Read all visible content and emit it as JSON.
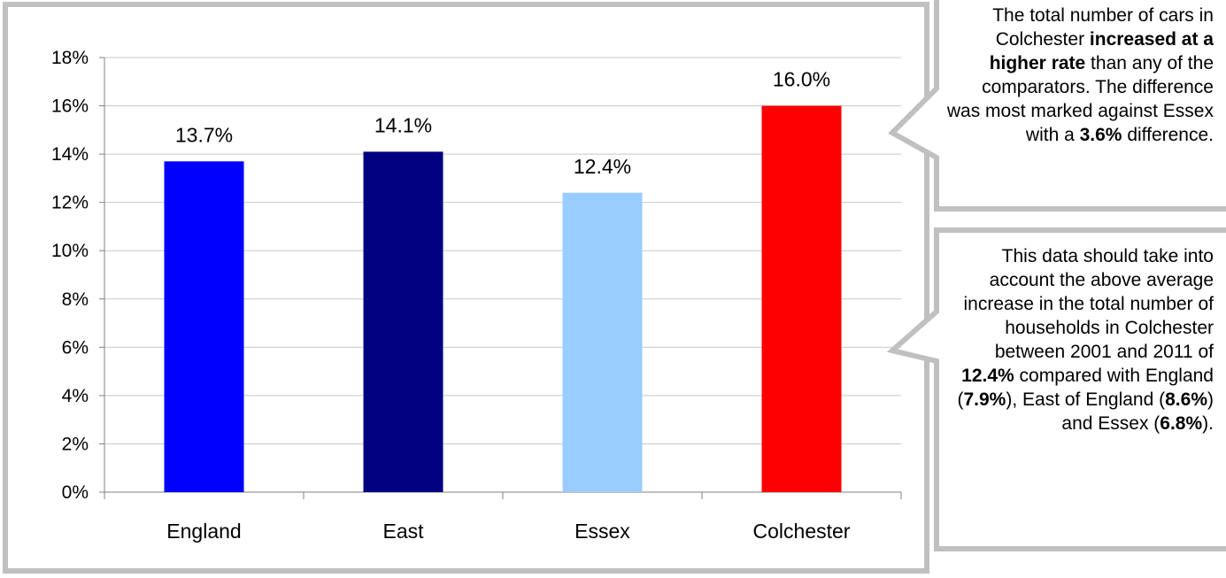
{
  "chart_data": {
    "type": "bar",
    "categories": [
      "England",
      "East",
      "Essex",
      "Colchester"
    ],
    "values": [
      13.7,
      14.1,
      12.4,
      16.0
    ],
    "value_labels": [
      "13.7%",
      "14.1%",
      "12.4%",
      "16.0%"
    ],
    "colors": [
      "#0000FF",
      "#000080",
      "#99CCFF",
      "#FF0000"
    ],
    "title": "",
    "xlabel": "",
    "ylabel": "",
    "ylim": [
      0,
      18
    ],
    "yticks": [
      0,
      2,
      4,
      6,
      8,
      10,
      12,
      14,
      16,
      18
    ],
    "ytick_labels": [
      "0%",
      "2%",
      "4%",
      "6%",
      "8%",
      "10%",
      "12%",
      "14%",
      "16%",
      "18%"
    ],
    "grid": true,
    "legend": "none"
  },
  "callouts": [
    {
      "parts": [
        {
          "text": "The total number of cars in Colchester ",
          "bold": false
        },
        {
          "text": "increased at a higher rate",
          "bold": true
        },
        {
          "text": " than any of the comparators. The difference was most marked against Essex with a ",
          "bold": false
        },
        {
          "text": "3.6%",
          "bold": true
        },
        {
          "text": " difference.",
          "bold": false
        }
      ]
    },
    {
      "parts": [
        {
          "text": "This data should take into account the above average increase in the total number of households in Colchester between 2001 and 2011 of ",
          "bold": false
        },
        {
          "text": "12.4%",
          "bold": true
        },
        {
          "text": " compared with England (",
          "bold": false
        },
        {
          "text": "7.9%",
          "bold": true
        },
        {
          "text": "), East of England (",
          "bold": false
        },
        {
          "text": "8.6%",
          "bold": true
        },
        {
          "text": ") and Essex (",
          "bold": false
        },
        {
          "text": "6.8%",
          "bold": true
        },
        {
          "text": ").",
          "bold": false
        }
      ]
    }
  ]
}
